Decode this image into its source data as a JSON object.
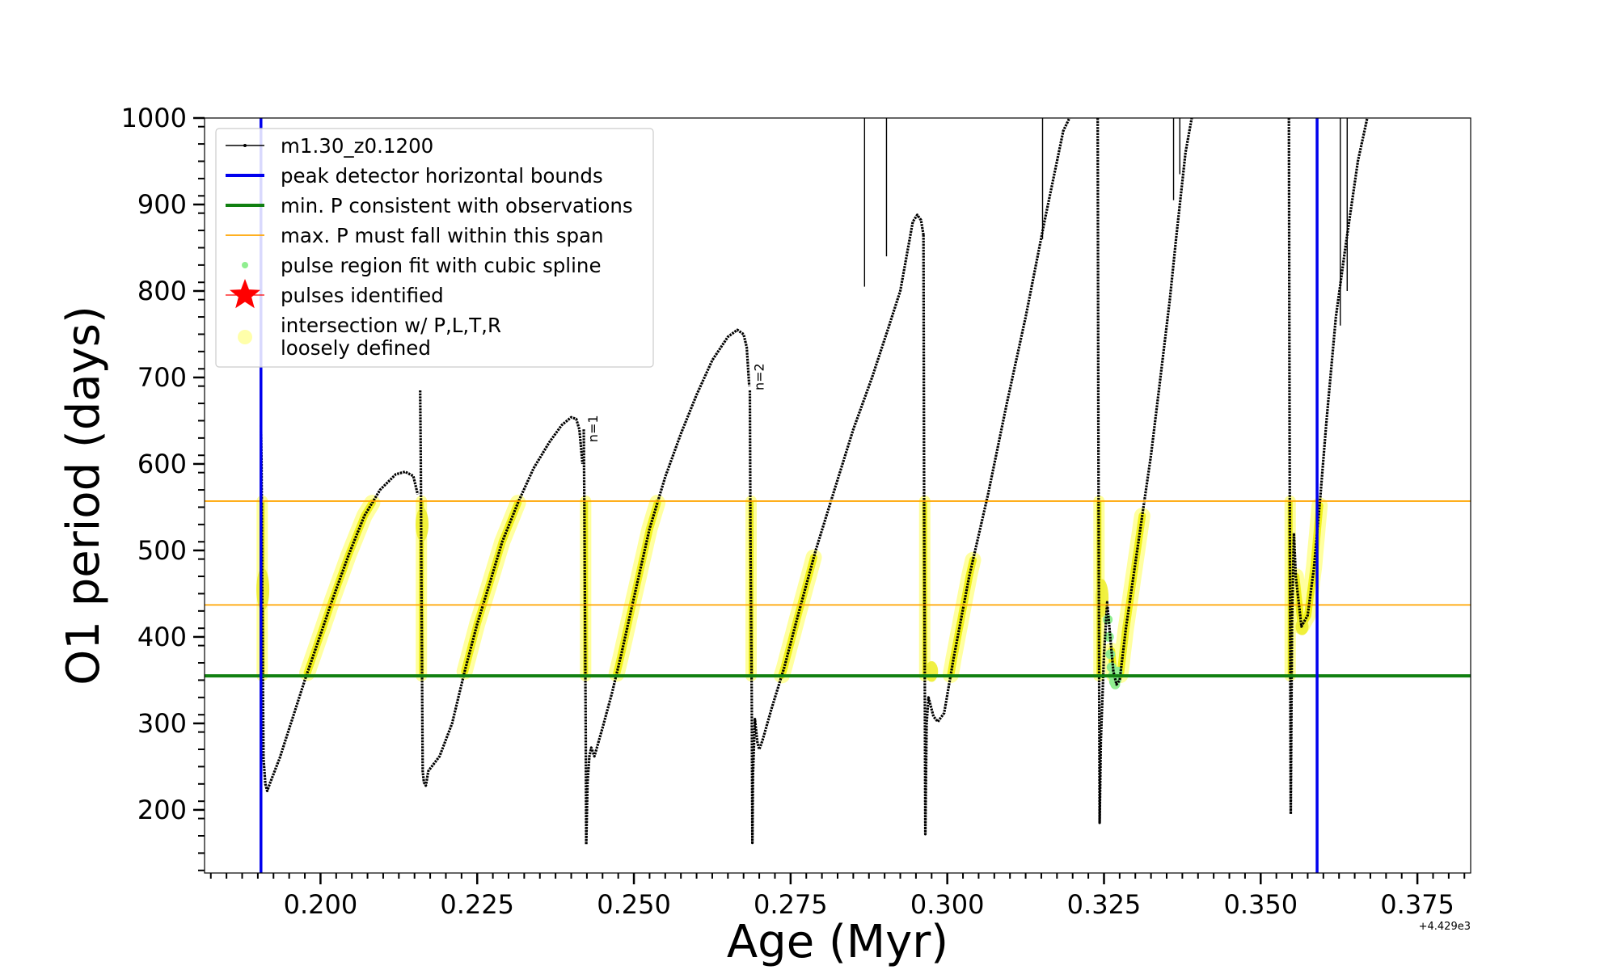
{
  "chart_data": {
    "type": "line",
    "xlabel": "Age (Myr)",
    "ylabel": "O1 period (days)",
    "xlim": [
      0.1815,
      0.3835
    ],
    "ylim": [
      127,
      1000
    ],
    "x_offset_label": "+4.429e3",
    "x_ticks": [
      0.2,
      0.225,
      0.25,
      0.275,
      0.3,
      0.325,
      0.35,
      0.375
    ],
    "x_tick_labels": [
      "0.200",
      "0.225",
      "0.250",
      "0.275",
      "0.300",
      "0.325",
      "0.350",
      "0.375"
    ],
    "y_ticks": [
      200,
      300,
      400,
      500,
      600,
      700,
      800,
      900,
      1000
    ],
    "y_tick_labels": [
      "200",
      "300",
      "400",
      "500",
      "600",
      "700",
      "800",
      "900",
      "1000"
    ],
    "grid": false,
    "legend_position": "top-left",
    "legend": [
      {
        "label": "m1.30_z0.1200",
        "marker": "line-dot",
        "color": "#000000"
      },
      {
        "label": "peak detector horizontal bounds",
        "marker": "line",
        "color": "#0000ee"
      },
      {
        "label": "min. P consistent with observations",
        "marker": "line",
        "color": "#118011"
      },
      {
        "label": "max. P must fall within this span",
        "marker": "line",
        "color": "#ffa500"
      },
      {
        "label": "pulse region fit with cubic spline",
        "marker": "dot",
        "color": "#90ee90"
      },
      {
        "label": "pulses identified",
        "marker": "star",
        "color": "#ff0000"
      },
      {
        "label": "intersection w/ P,L,T,R",
        "label2": "loosely defined",
        "marker": "circle",
        "color": "#ffffaa"
      }
    ],
    "vertical_lines": [
      {
        "x": 0.1905,
        "color": "#0000ee",
        "name": "peak detector horizontal bounds"
      },
      {
        "x": 0.359,
        "color": "#0000ee",
        "name": "peak detector horizontal bounds"
      }
    ],
    "horizontal_lines": [
      {
        "y": 355,
        "color": "#118011",
        "name": "min. P consistent with observations"
      },
      {
        "y": 557,
        "color": "#ffa500",
        "name": "max. P span upper"
      },
      {
        "y": 437,
        "color": "#ffa500",
        "name": "max. P span lower"
      }
    ],
    "annotations": [
      {
        "text": "n=1",
        "x": 0.2424,
        "y": 625
      },
      {
        "text": "n=2",
        "x": 0.2689,
        "y": 685
      }
    ],
    "series": [
      {
        "name": "m1.30_z0.1200",
        "color": "#000000",
        "segments": [
          [
            [
              0.1905,
              645
            ],
            [
              0.1906,
              600
            ],
            [
              0.1907,
              460
            ],
            [
              0.1908,
              360
            ],
            [
              0.1909,
              260
            ],
            [
              0.1912,
              230
            ],
            [
              0.1915,
              222
            ],
            [
              0.192,
              232
            ],
            [
              0.1935,
              260
            ],
            [
              0.1955,
              305
            ],
            [
              0.1975,
              350
            ],
            [
              0.1995,
              392
            ],
            [
              0.202,
              445
            ],
            [
              0.2045,
              495
            ],
            [
              0.207,
              540
            ],
            [
              0.2095,
              570
            ],
            [
              0.212,
              588
            ],
            [
              0.2135,
              591
            ],
            [
              0.2148,
              586
            ],
            [
              0.2155,
              565
            ]
          ],
          [
            [
              0.2159,
              685
            ],
            [
              0.216,
              600
            ],
            [
              0.2161,
              470
            ],
            [
              0.2162,
              360
            ],
            [
              0.2163,
              245
            ],
            [
              0.2165,
              232
            ],
            [
              0.2168,
              228
            ],
            [
              0.2172,
              245
            ],
            [
              0.219,
              262
            ],
            [
              0.221,
              300
            ],
            [
              0.223,
              360
            ],
            [
              0.225,
              415
            ],
            [
              0.227,
              462
            ],
            [
              0.229,
              510
            ],
            [
              0.2315,
              555
            ],
            [
              0.234,
              595
            ],
            [
              0.2365,
              625
            ],
            [
              0.2385,
              645
            ],
            [
              0.24,
              654
            ],
            [
              0.2408,
              652
            ],
            [
              0.2413,
              640
            ],
            [
              0.2418,
              600
            ]
          ],
          [
            [
              0.242,
              640
            ],
            [
              0.2421,
              550
            ],
            [
              0.2422,
              420
            ],
            [
              0.2423,
              300
            ],
            [
              0.2424,
              160
            ],
            [
              0.2426,
              232
            ],
            [
              0.2429,
              262
            ],
            [
              0.2432,
              272
            ],
            [
              0.2437,
              262
            ],
            [
              0.245,
              295
            ],
            [
              0.2465,
              335
            ],
            [
              0.248,
              380
            ],
            [
              0.25,
              445
            ],
            [
              0.2525,
              525
            ],
            [
              0.255,
              585
            ],
            [
              0.2575,
              635
            ],
            [
              0.26,
              680
            ],
            [
              0.2625,
              720
            ],
            [
              0.265,
              747
            ],
            [
              0.2665,
              755
            ],
            [
              0.2675,
              750
            ],
            [
              0.268,
              735
            ],
            [
              0.2684,
              690
            ]
          ],
          [
            [
              0.2685,
              685
            ],
            [
              0.2686,
              520
            ],
            [
              0.2688,
              330
            ],
            [
              0.2689,
              162
            ],
            [
              0.269,
              240
            ],
            [
              0.2693,
              305
            ],
            [
              0.2697,
              278
            ],
            [
              0.27,
              270
            ],
            [
              0.2705,
              280
            ],
            [
              0.272,
              318
            ],
            [
              0.274,
              365
            ],
            [
              0.276,
              420
            ],
            [
              0.279,
              500
            ],
            [
              0.282,
              570
            ],
            [
              0.285,
              640
            ],
            [
              0.288,
              700
            ],
            [
              0.2905,
              755
            ],
            [
              0.2925,
              800
            ],
            [
              0.2945,
              880
            ],
            [
              0.2952,
              888
            ],
            [
              0.2958,
              882
            ],
            [
              0.2962,
              865
            ]
          ],
          [
            [
              0.2962,
              865
            ],
            [
              0.2963,
              560
            ],
            [
              0.2964,
              360
            ],
            [
              0.2965,
              172
            ],
            [
              0.2967,
              300
            ],
            [
              0.297,
              330
            ],
            [
              0.2978,
              308
            ],
            [
              0.2985,
              302
            ],
            [
              0.2995,
              312
            ],
            [
              0.301,
              375
            ],
            [
              0.3035,
              470
            ],
            [
              0.3065,
              565
            ],
            [
              0.3095,
              670
            ],
            [
              0.3125,
              770
            ],
            [
              0.3155,
              880
            ],
            [
              0.3185,
              985
            ],
            [
              0.3195,
              1000
            ]
          ],
          [
            [
              0.324,
              1000
            ],
            [
              0.3241,
              650
            ],
            [
              0.3242,
              400
            ],
            [
              0.3243,
              185
            ],
            [
              0.3245,
              280
            ],
            [
              0.325,
              380
            ],
            [
              0.3255,
              440
            ],
            [
              0.326,
              400
            ],
            [
              0.3265,
              360
            ],
            [
              0.327,
              345
            ],
            [
              0.3275,
              350
            ],
            [
              0.3285,
              410
            ],
            [
              0.3305,
              510
            ],
            [
              0.3325,
              610
            ],
            [
              0.334,
              700
            ],
            [
              0.3355,
              790
            ],
            [
              0.3365,
              860
            ],
            [
              0.338,
              960
            ],
            [
              0.339,
              1000
            ]
          ],
          [
            [
              0.3545,
              1000
            ],
            [
              0.3546,
              650
            ],
            [
              0.3547,
              400
            ],
            [
              0.3548,
              195
            ],
            [
              0.355,
              420
            ],
            [
              0.3553,
              520
            ],
            [
              0.3556,
              470
            ],
            [
              0.3565,
              412
            ],
            [
              0.3575,
              425
            ],
            [
              0.3585,
              480
            ],
            [
              0.3595,
              560
            ],
            [
              0.3605,
              650
            ],
            [
              0.362,
              770
            ],
            [
              0.3635,
              850
            ],
            [
              0.3655,
              950
            ],
            [
              0.367,
              1000
            ]
          ]
        ],
        "spikes": [
          {
            "x": 0.2868,
            "y_from": 1000,
            "y_to": 805
          },
          {
            "x": 0.2903,
            "y_from": 1000,
            "y_to": 840
          },
          {
            "x": 0.3152,
            "y_from": 1000,
            "y_to": 860
          },
          {
            "x": 0.3361,
            "y_from": 1000,
            "y_to": 905
          },
          {
            "x": 0.3371,
            "y_from": 1000,
            "y_to": 935
          },
          {
            "x": 0.3627,
            "y_from": 1000,
            "y_to": 760
          },
          {
            "x": 0.3638,
            "y_from": 1000,
            "y_to": 800
          }
        ]
      },
      {
        "name": "pulse region fit with cubic spline",
        "color": "#90ee90",
        "points": [
          [
            0.3256,
            420
          ],
          [
            0.3258,
            400
          ],
          [
            0.326,
            380
          ],
          [
            0.3262,
            365
          ],
          [
            0.3264,
            355
          ],
          [
            0.3266,
            348
          ],
          [
            0.3268,
            345
          ],
          [
            0.327,
            350
          ],
          [
            0.3272,
            360
          ]
        ]
      }
    ],
    "highlights": [
      {
        "x_from": 0.1955,
        "x_to": 0.2093,
        "y_from": 355,
        "y_to": 557
      },
      {
        "x_from": 0.2199,
        "x_to": 0.2315,
        "y_from": 355,
        "y_to": 557
      },
      {
        "x_from": 0.2455,
        "x_to": 0.2538,
        "y_from": 355,
        "y_to": 557
      },
      {
        "x_from": 0.2712,
        "x_to": 0.2778,
        "y_from": 355,
        "y_to": 557
      },
      {
        "x_from": 0.2993,
        "x_to": 0.3032,
        "y_from": 355,
        "y_to": 557
      },
      {
        "x_from": 0.3272,
        "x_to": 0.3303,
        "y_from": 355,
        "y_to": 557
      },
      {
        "x_from": 0.3566,
        "x_to": 0.3588,
        "y_from": 410,
        "y_to": 557
      }
    ],
    "highlight_columns": [
      {
        "x": 0.1907,
        "y_from": 355,
        "y_to": 557
      },
      {
        "x": 0.2161,
        "y_from": 355,
        "y_to": 557
      },
      {
        "x": 0.2423,
        "y_from": 355,
        "y_to": 557
      },
      {
        "x": 0.2687,
        "y_from": 355,
        "y_to": 557
      },
      {
        "x": 0.2964,
        "y_from": 355,
        "y_to": 557
      },
      {
        "x": 0.3242,
        "y_from": 355,
        "y_to": 557
      },
      {
        "x": 0.3547,
        "y_from": 355,
        "y_to": 557
      }
    ],
    "highlight_blobs": [
      {
        "x": 0.1908,
        "y": 455,
        "ry": 25
      },
      {
        "x": 0.2162,
        "y": 530,
        "ry": 20
      },
      {
        "x": 0.3247,
        "y": 445,
        "ry": 22
      },
      {
        "x": 0.2975,
        "y": 360,
        "ry": 12
      },
      {
        "x": 0.3566,
        "y": 412,
        "ry": 10
      }
    ]
  }
}
